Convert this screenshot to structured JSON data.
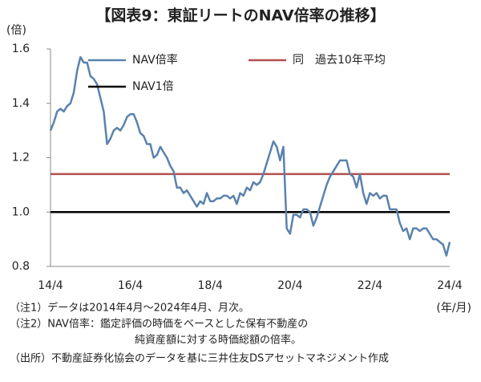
{
  "chart_data": {
    "type": "line",
    "title": "【図表9：東証リートのNAV倍率の推移】",
    "y_label": "(倍)",
    "x_label": "(年/月)",
    "categories": [
      "14/4",
      null,
      null,
      null,
      null,
      null,
      null,
      null,
      null,
      null,
      null,
      null,
      null,
      null,
      null,
      null,
      null,
      null,
      null,
      null,
      null,
      null,
      null,
      null,
      "16/4",
      null,
      null,
      null,
      null,
      null,
      null,
      null,
      null,
      null,
      null,
      null,
      null,
      null,
      null,
      null,
      null,
      null,
      null,
      null,
      null,
      null,
      null,
      null,
      "18/4",
      null,
      null,
      null,
      null,
      null,
      null,
      null,
      null,
      null,
      null,
      null,
      null,
      null,
      null,
      null,
      null,
      null,
      null,
      null,
      null,
      null,
      null,
      null,
      "20/4",
      null,
      null,
      null,
      null,
      null,
      null,
      null,
      null,
      null,
      null,
      null,
      null,
      null,
      null,
      null,
      null,
      null,
      null,
      null,
      null,
      null,
      null,
      null,
      "22/4",
      null,
      null,
      null,
      null,
      null,
      null,
      null,
      null,
      null,
      null,
      null,
      null,
      null,
      null,
      null,
      null,
      null,
      null,
      null,
      null,
      null,
      null,
      null,
      "24/4"
    ],
    "series": [
      {
        "name": "NAV倍率",
        "color": "#5a82ad",
        "values": [
          1.3,
          1.33,
          1.37,
          1.38,
          1.37,
          1.39,
          1.4,
          1.44,
          1.52,
          1.57,
          1.55,
          1.55,
          1.5,
          1.49,
          1.47,
          1.42,
          1.37,
          1.25,
          1.27,
          1.3,
          1.31,
          1.3,
          1.32,
          1.35,
          1.36,
          1.36,
          1.33,
          1.29,
          1.28,
          1.25,
          1.25,
          1.2,
          1.21,
          1.24,
          1.22,
          1.2,
          1.17,
          1.15,
          1.09,
          1.09,
          1.07,
          1.08,
          1.06,
          1.04,
          1.02,
          1.04,
          1.03,
          1.07,
          1.04,
          1.04,
          1.05,
          1.05,
          1.06,
          1.06,
          1.05,
          1.06,
          1.03,
          1.07,
          1.06,
          1.09,
          1.08,
          1.11,
          1.1,
          1.11,
          1.14,
          1.18,
          1.22,
          1.26,
          1.24,
          1.19,
          1.24,
          0.94,
          0.92,
          0.99,
          0.99,
          0.98,
          1.01,
          1.01,
          1.0,
          0.95,
          0.98,
          1.02,
          1.06,
          1.1,
          1.13,
          1.15,
          1.17,
          1.19,
          1.19,
          1.19,
          1.14,
          1.13,
          1.09,
          1.14,
          1.07,
          1.03,
          1.07,
          1.06,
          1.07,
          1.05,
          1.06,
          1.06,
          1.01,
          1.01,
          1.01,
          0.96,
          0.93,
          0.94,
          0.9,
          0.94,
          0.94,
          0.93,
          0.94,
          0.94,
          0.92,
          0.9,
          0.9,
          0.89,
          0.88,
          0.84,
          0.89
        ]
      }
    ],
    "reference_lines": [
      {
        "name": "同　過去10年平均",
        "value": 1.14,
        "color": "#b0504f"
      },
      {
        "name": "NAV1倍",
        "value": 1,
        "color": "#000000"
      }
    ],
    "ylim": [
      0.8,
      1.6
    ],
    "yticks": [
      0.8,
      {
        "value": 1,
        "label": "1.0"
      },
      1.2,
      1.4,
      1.6
    ],
    "notes": [
      "（注1）データは2014年4月～2024年4月、月次。",
      "（注2）NAV倍率：鑑定評価の時価をベースとした保有不動産の",
      "純資産額に対する時価総額の倍率。",
      "（出所）不動産証券化協会のデータを基に三井住友DSアセットマネジメント作成"
    ]
  }
}
